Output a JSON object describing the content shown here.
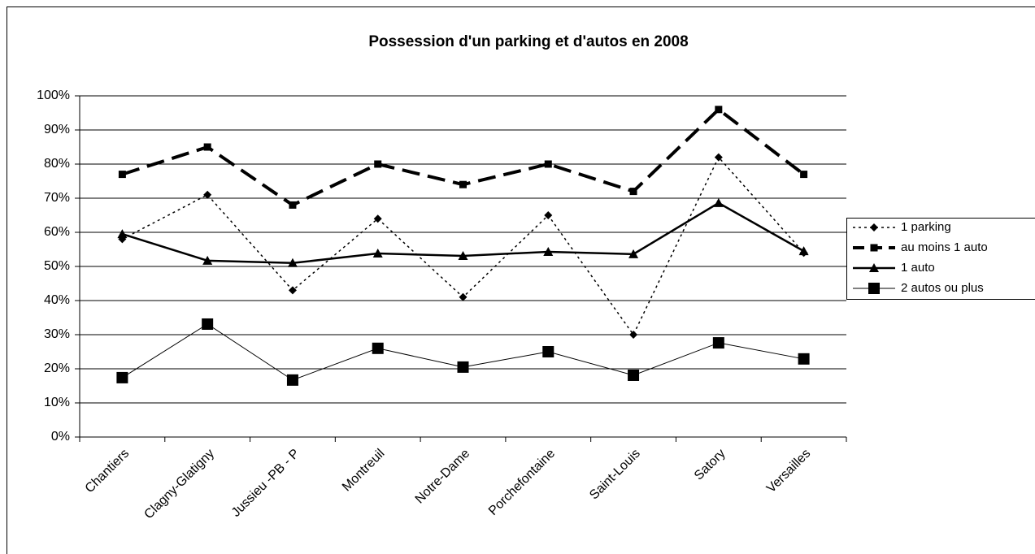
{
  "chart_data": {
    "type": "line",
    "title": "Possession d'un parking et d'autos en 2008",
    "categories": [
      "Chantiers",
      "Clagny-Glatigny",
      "Jussieu -PB - P",
      "Montreuil",
      "Notre-Dame",
      "Porchefontaine",
      "Saint-Louis",
      "Satory",
      "Versailles"
    ],
    "series": [
      {
        "name": "1 parking",
        "color": "#000000",
        "line_style": "dotted",
        "marker": "diamond",
        "values": [
          58,
          71,
          43,
          64,
          41,
          65,
          30,
          82,
          54
        ]
      },
      {
        "name": "au moins 1 auto",
        "color": "#000000",
        "line_style": "dashed",
        "marker": "square-small",
        "values": [
          77,
          85,
          68,
          80,
          74,
          80,
          72,
          96,
          77
        ]
      },
      {
        "name": "1 auto",
        "color": "#000000",
        "line_style": "solid-thick",
        "marker": "triangle",
        "values": [
          59.5,
          51.7,
          51,
          53.8,
          53.1,
          54.3,
          53.6,
          68.6,
          54.5
        ]
      },
      {
        "name": "2 autos ou plus",
        "color": "#000000",
        "line_style": "solid-thin",
        "marker": "square",
        "values": [
          17.4,
          33.1,
          16.7,
          26,
          20.5,
          25,
          18.1,
          27.6,
          22.9
        ]
      }
    ],
    "ylim": [
      0,
      100
    ],
    "yticks": [
      {
        "value": 0,
        "label": "0%"
      },
      {
        "value": 10,
        "label": "10%"
      },
      {
        "value": 20,
        "label": "20%"
      },
      {
        "value": 30,
        "label": "30%"
      },
      {
        "value": 40,
        "label": "40%"
      },
      {
        "value": 50,
        "label": "50%"
      },
      {
        "value": 60,
        "label": "60%"
      },
      {
        "value": 70,
        "label": "70%"
      },
      {
        "value": 80,
        "label": "80%"
      },
      {
        "value": 90,
        "label": "90%"
      },
      {
        "value": 100,
        "label": "100%"
      }
    ],
    "grid": true,
    "legend": "right"
  }
}
